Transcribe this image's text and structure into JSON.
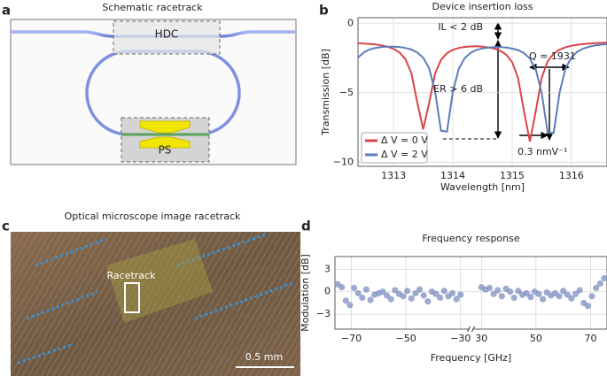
{
  "panels": {
    "a": {
      "label": "a",
      "title": "Schematic racetrack",
      "hdc": "HDC",
      "ps": "PS"
    },
    "c": {
      "label": "c",
      "title": "Optical microscope image racetrack",
      "racetrack": "Racetrack",
      "scale": "0.5 mm"
    }
  },
  "chart_data": [
    {
      "type": "line",
      "label": "b",
      "title": "Device insertion loss",
      "x_label": "Wavelength [nm]",
      "y_label": "Transmission [dB]",
      "x": [
        1312.4,
        1312.5,
        1312.6,
        1312.7,
        1312.8,
        1312.9,
        1313.0,
        1313.1,
        1313.2,
        1313.3,
        1313.4,
        1313.5,
        1313.6,
        1313.7,
        1313.8,
        1313.9,
        1314.0,
        1314.1,
        1314.2,
        1314.3,
        1314.4,
        1314.5,
        1314.6,
        1314.7,
        1314.8,
        1314.9,
        1315.0,
        1315.1,
        1315.2,
        1315.3,
        1315.4,
        1315.5,
        1315.6,
        1315.7,
        1315.8,
        1315.9,
        1316.0,
        1316.1,
        1316.2,
        1316.3,
        1316.4,
        1316.5,
        1316.6
      ],
      "series": [
        {
          "name": "Δ V = 0 V",
          "color": "#d9454a",
          "values": [
            -1.43,
            -1.46,
            -1.49,
            -1.53,
            -1.6,
            -1.69,
            -1.84,
            -2.1,
            -2.58,
            -3.59,
            -5.7,
            -7.63,
            -5.72,
            -3.62,
            -2.63,
            -2.15,
            -1.92,
            -1.78,
            -1.71,
            -1.67,
            -1.66,
            -1.69,
            -1.74,
            -1.82,
            -1.98,
            -2.26,
            -2.8,
            -3.94,
            -6.32,
            -8.53,
            -6.3,
            -3.9,
            -2.74,
            -2.19,
            -1.9,
            -1.73,
            -1.62,
            -1.55,
            -1.49,
            -1.46,
            -1.43,
            -1.41,
            -1.4
          ]
        },
        {
          "name": "Δ V = 2 V",
          "color": "#5b7db8",
          "values": [
            -2.47,
            -2.09,
            -1.88,
            -1.77,
            -1.71,
            -1.68,
            -1.68,
            -1.71,
            -1.78,
            -1.89,
            -2.1,
            -2.48,
            -3.25,
            -4.91,
            -7.74,
            -7.8,
            -4.95,
            -3.29,
            -2.51,
            -2.13,
            -1.92,
            -1.81,
            -1.75,
            -1.72,
            -1.72,
            -1.75,
            -1.82,
            -1.93,
            -2.15,
            -2.54,
            -3.33,
            -5.05,
            -7.9,
            -7.9,
            -4.98,
            -3.25,
            -2.45,
            -2.05,
            -1.82,
            -1.69,
            -1.6,
            -1.54,
            -1.5
          ]
        }
      ],
      "xlim": [
        1312.4,
        1316.6
      ],
      "ylim": [
        -10.3,
        0.4
      ],
      "xticks": [
        1313,
        1314,
        1315,
        1316
      ],
      "yticks": [
        0,
        {
          "value": -5,
          "label": "−5"
        },
        {
          "value": -10,
          "label": "−10"
        }
      ],
      "grid": true,
      "legend": "lower left",
      "annotations": [
        "IL < 2 dB",
        "ER > 6 dB",
        "Q ≈ 1931",
        "0.3 nmV⁻¹"
      ]
    },
    {
      "type": "scatter",
      "label": "d",
      "title": "Frequency response",
      "x_label": "Frequency [GHz]",
      "y_label": "Modulation [dB]",
      "color": "#7d8fc0",
      "x": [
        -75,
        -73.5,
        -72,
        -70.5,
        -69,
        -67.5,
        -66,
        -64.5,
        -63,
        -61.5,
        -60,
        -58.5,
        -57,
        -55.5,
        -54,
        -52.5,
        -51,
        -49.5,
        -48,
        -46.5,
        -45,
        -43.5,
        -42,
        -40.5,
        -39,
        -37.5,
        -36,
        -34.5,
        -33,
        -31.5,
        -30,
        30,
        31.5,
        33,
        34.5,
        36,
        37.5,
        39,
        40.5,
        42,
        43.5,
        45,
        46.5,
        48,
        49.5,
        51,
        52.5,
        54,
        55.5,
        57,
        58.5,
        60,
        61.5,
        63,
        64.5,
        66,
        67.5,
        69,
        70.5,
        72,
        73.5,
        75
      ],
      "values": [
        1.0,
        0.6,
        -1.2,
        -1.8,
        0.5,
        -0.2,
        -0.8,
        0.3,
        -1.1,
        -0.4,
        -0.2,
        0,
        -0.5,
        -1.0,
        0.2,
        -0.3,
        -0.6,
        0.1,
        -0.9,
        -0.2,
        0.3,
        -0.5,
        -1.3,
        0,
        -0.3,
        -0.8,
        0.1,
        -0.6,
        -0.2,
        -1.0,
        -0.4,
        0.6,
        0.3,
        0.5,
        -0.3,
        0.2,
        -0.6,
        0.4,
        0,
        -0.8,
        0.1,
        -0.4,
        -0.2,
        -0.7,
        0,
        -0.3,
        -1.0,
        -0.1,
        -0.5,
        -0.2,
        -0.6,
        0.1,
        -0.4,
        -0.9,
        -0.3,
        0.2,
        -1.5,
        -1.9,
        -0.6,
        0.5,
        1.1,
        1.8
      ],
      "xlims": [
        [
          -76,
          -27
        ],
        [
          27,
          76
        ]
      ],
      "ylim": [
        -5,
        4.7
      ],
      "xticks": [
        {
          "value": -70,
          "label": "−70"
        },
        {
          "value": -50,
          "label": "−50"
        },
        {
          "value": -30,
          "label": "−30"
        },
        30,
        50,
        70
      ],
      "yticks": [
        3,
        0,
        {
          "value": -3,
          "label": "−3"
        }
      ],
      "grid": true
    }
  ]
}
